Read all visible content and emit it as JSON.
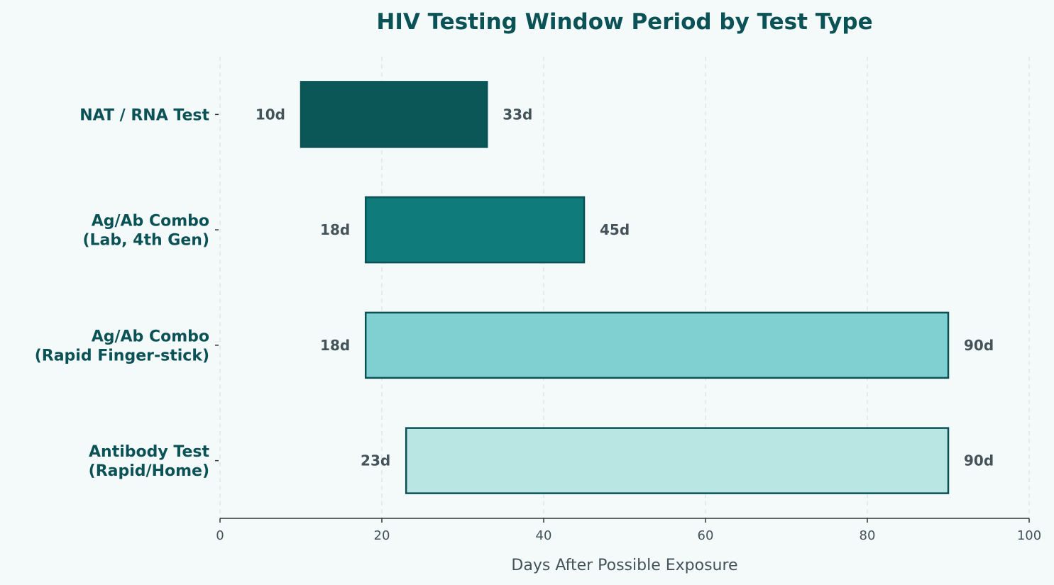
{
  "chart_data": {
    "type": "bar",
    "orientation": "horizontal",
    "title": "HIV Testing Window Period by Test Type",
    "xlabel": "Days After Possible Exposure",
    "ylabel": "",
    "xlim": [
      0,
      100
    ],
    "xticks": [
      0,
      20,
      40,
      60,
      80,
      100
    ],
    "grid": "vertical dashed",
    "legend": "none",
    "categories": [
      "NAT / RNA Test",
      "Ag/Ab Combo\n(Lab, 4th Gen)",
      "Ag/Ab Combo\n(Rapid Finger-stick)",
      "Antibody Test\n(Rapid/Home)"
    ],
    "start": [
      10,
      18,
      18,
      23
    ],
    "end": [
      33,
      45,
      90,
      90
    ],
    "start_labels": [
      "10d",
      "18d",
      "18d",
      "23d"
    ],
    "end_labels": [
      "33d",
      "45d",
      "90d",
      "90d"
    ],
    "colors": [
      "#0b5757",
      "#0f7b7a",
      "#80d0d1",
      "#b9e5e2"
    ],
    "edge_color": "#0b5256"
  }
}
